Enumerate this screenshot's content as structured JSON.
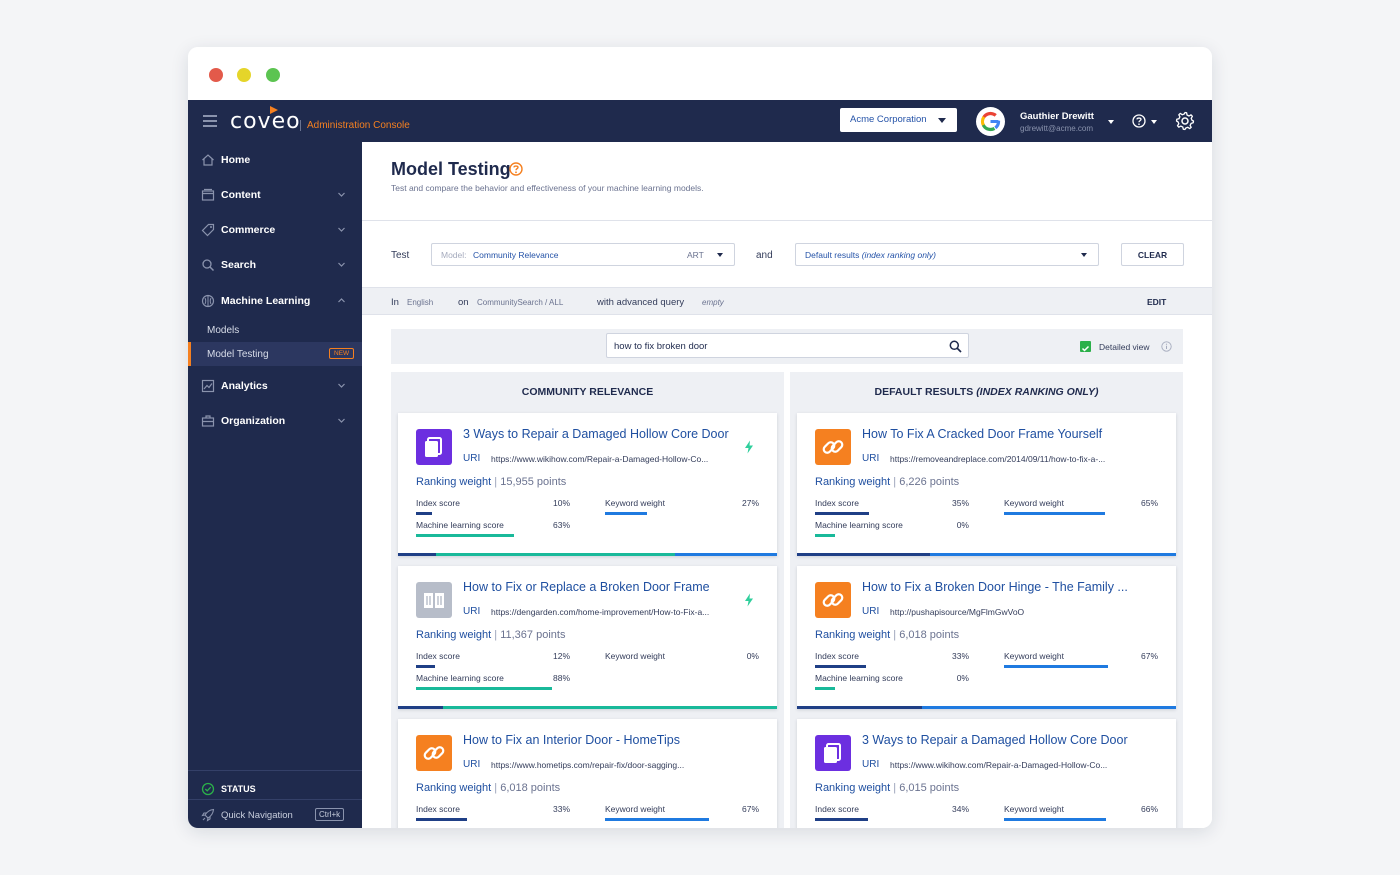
{
  "app": {
    "logo": "coveo",
    "console_label": "Administration Console",
    "org": "Acme Corporation",
    "user_name": "Gauthier Drewitt",
    "user_email": "gdrewitt@acme.com"
  },
  "colors": {
    "navy": "#1f2a4d",
    "accent": "#f58020",
    "link": "#1f4fa0",
    "index_bar": "#1f3f86",
    "keyword_bar": "#1f7ae0",
    "ml_bar": "#19b99a"
  },
  "sidebar": {
    "items": [
      {
        "label": "Home",
        "icon": "home-icon"
      },
      {
        "label": "Content",
        "icon": "content-icon"
      },
      {
        "label": "Commerce",
        "icon": "tag-icon"
      },
      {
        "label": "Search",
        "icon": "search-icon"
      },
      {
        "label": "Machine Learning",
        "icon": "brain-icon"
      },
      {
        "label": "Analytics",
        "icon": "chart-icon"
      },
      {
        "label": "Organization",
        "icon": "briefcase-icon"
      }
    ],
    "subitems": [
      {
        "label": "Models"
      },
      {
        "label": "Model Testing",
        "badge": "NEW"
      }
    ],
    "status": "STATUS",
    "quick_nav": "Quick Navigation",
    "quick_nav_shortcut": "Ctrl+k"
  },
  "page": {
    "title": "Model Testing",
    "subtitle": "Test and compare the behavior and effectiveness of your machine learning models."
  },
  "test_bar": {
    "test_label": "Test",
    "model_prefix": "Model:",
    "model_value": "Community Relevance",
    "model_tag": "ART",
    "and_label": "and",
    "default_value": "Default results",
    "default_value_italic": "(index ranking only)",
    "clear": "CLEAR"
  },
  "query_bar": {
    "in_label": "In",
    "language": "English",
    "on_label": "on",
    "pipeline": "CommunitySearch / ALL",
    "advanced_label": "with advanced query",
    "advanced_value": "empty",
    "edit": "EDIT"
  },
  "search": {
    "query": "how to fix broken door",
    "detailed_view": "Detailed view"
  },
  "metric_labels": {
    "index": "Index score",
    "keyword": "Keyword weight",
    "ml": "Machine learning score",
    "uri": "URI",
    "ranking": "Ranking weight",
    "separator": "|"
  },
  "columns": [
    {
      "header": "COMMUNITY RELEVANCE",
      "header_italic": "",
      "results": [
        {
          "title": "3 Ways to Repair a Damaged Hollow Core Door",
          "uri": "https://www.wikihow.com/Repair-a-Damaged-Hollow-Co...",
          "icon": "document-icon",
          "icon_color": "#6c2fe0",
          "boosted": true,
          "points": "15,955 points",
          "index": "10%",
          "keyword": "27%",
          "ml": "63%",
          "index_v": 0.1,
          "keyword_v": 0.27,
          "ml_v": 0.63,
          "has_ml": true
        },
        {
          "title": "How to Fix or Replace a Broken Door Frame",
          "uri": "https://dengarden.com/home-improvement/How-to-Fix-a...",
          "icon": "book-icon",
          "icon_color": "#b7bdc9",
          "boosted": true,
          "points": "11,367 points",
          "index": "12%",
          "keyword": "0%",
          "ml": "88%",
          "index_v": 0.12,
          "keyword_v": 0.0,
          "ml_v": 0.88,
          "has_ml": true
        },
        {
          "title": "How to Fix an Interior Door - HomeTips",
          "uri": "https://www.hometips.com/repair-fix/door-sagging...",
          "icon": "link-icon",
          "icon_color": "#f58020",
          "boosted": false,
          "points": "6,018 points",
          "index": "33%",
          "keyword": "67%",
          "ml": "",
          "index_v": 0.33,
          "keyword_v": 0.67,
          "ml_v": 0,
          "has_ml": false
        }
      ]
    },
    {
      "header": "DEFAULT RESULTS",
      "header_italic": "(INDEX RANKING ONLY)",
      "results": [
        {
          "title": "How To Fix A Cracked Door Frame Yourself",
          "uri": "https://removeandreplace.com/2014/09/11/how-to-fix-a-...",
          "icon": "link-icon",
          "icon_color": "#f58020",
          "boosted": false,
          "points": "6,226 points",
          "index": "35%",
          "keyword": "65%",
          "ml": "0%",
          "index_v": 0.35,
          "keyword_v": 0.65,
          "ml_v": 0.0,
          "has_ml": true
        },
        {
          "title": "How to Fix a Broken Door Hinge - The Family ...",
          "uri": "http://pushapisource/MgFlmGwVoO",
          "icon": "link-icon",
          "icon_color": "#f58020",
          "boosted": false,
          "points": "6,018 points",
          "index": "33%",
          "keyword": "67%",
          "ml": "0%",
          "index_v": 0.33,
          "keyword_v": 0.67,
          "ml_v": 0.0,
          "has_ml": true
        },
        {
          "title": "3 Ways to Repair a Damaged Hollow Core Door",
          "uri": "https://www.wikihow.com/Repair-a-Damaged-Hollow-Co...",
          "icon": "document-icon",
          "icon_color": "#6c2fe0",
          "boosted": false,
          "points": "6,015 points",
          "index": "34%",
          "keyword": "66%",
          "ml": "",
          "index_v": 0.34,
          "keyword_v": 0.66,
          "ml_v": 0,
          "has_ml": false
        }
      ]
    }
  ]
}
